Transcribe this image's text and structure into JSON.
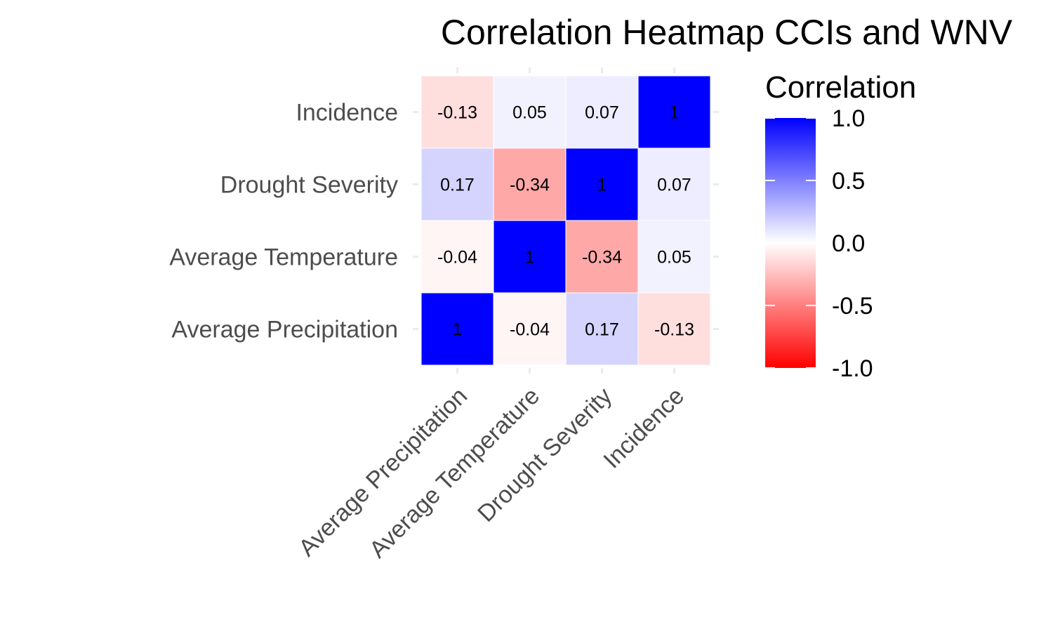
{
  "chart_data": {
    "type": "heatmap",
    "title": "Correlation Heatmap CCIs and WNV",
    "x_categories": [
      "Average Precipitation",
      "Average Temperature",
      "Drought Severity",
      "Incidence"
    ],
    "y_categories": [
      "Average Precipitation",
      "Average Temperature",
      "Drought Severity",
      "Incidence"
    ],
    "values": [
      [
        1,
        -0.04,
        0.17,
        -0.13
      ],
      [
        -0.04,
        1,
        -0.34,
        0.05
      ],
      [
        0.17,
        -0.34,
        1,
        0.07
      ],
      [
        -0.13,
        0.05,
        0.07,
        1
      ]
    ],
    "value_labels": [
      [
        "1",
        "-0.04",
        "0.17",
        "-0.13"
      ],
      [
        "-0.04",
        "1",
        "-0.34",
        "0.05"
      ],
      [
        "0.17",
        "-0.34",
        "1",
        "0.07"
      ],
      [
        "-0.13",
        "0.05",
        "0.07",
        "1"
      ]
    ],
    "legend": {
      "title": "Correlation",
      "range": [
        -1,
        1
      ],
      "ticks": [
        1.0,
        0.5,
        0.0,
        -0.5,
        -1.0
      ],
      "tick_labels": [
        "1.0",
        "0.5",
        "0.0",
        "-0.5",
        "-1.0"
      ],
      "low_color": "#ff0000",
      "mid_color": "#ffffff",
      "high_color": "#0000ff",
      "placement": "right"
    },
    "grid": false
  }
}
